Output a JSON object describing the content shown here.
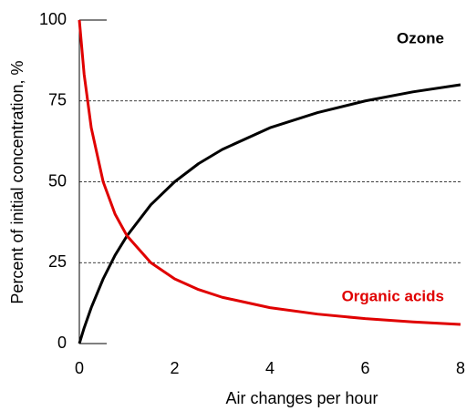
{
  "chart_data": {
    "type": "line",
    "x_label": "Air changes per hour",
    "y_label": "Percent of initial concentration, %",
    "x": [
      0,
      0.1,
      0.25,
      0.5,
      0.75,
      1,
      1.5,
      2,
      2.5,
      3,
      4,
      5,
      6,
      7,
      8
    ],
    "series": [
      {
        "name": "Ozone",
        "color": "#000000",
        "values": [
          0,
          4.8,
          11.1,
          20,
          27.3,
          33.3,
          42.9,
          50,
          55.6,
          60,
          66.7,
          71.4,
          75,
          77.8,
          80
        ]
      },
      {
        "name": "Organic acids",
        "color": "#e00000",
        "values": [
          100,
          83.3,
          66.7,
          50,
          40,
          33.3,
          25,
          20,
          16.7,
          14.3,
          11.1,
          9.1,
          7.7,
          6.7,
          5.9
        ]
      }
    ],
    "xlim": [
      0,
      8
    ],
    "xticks": [
      0,
      2,
      4,
      6,
      8
    ],
    "ylim": [
      0,
      100
    ],
    "yticks": [
      0,
      25,
      50,
      75,
      100
    ],
    "grid": true
  }
}
